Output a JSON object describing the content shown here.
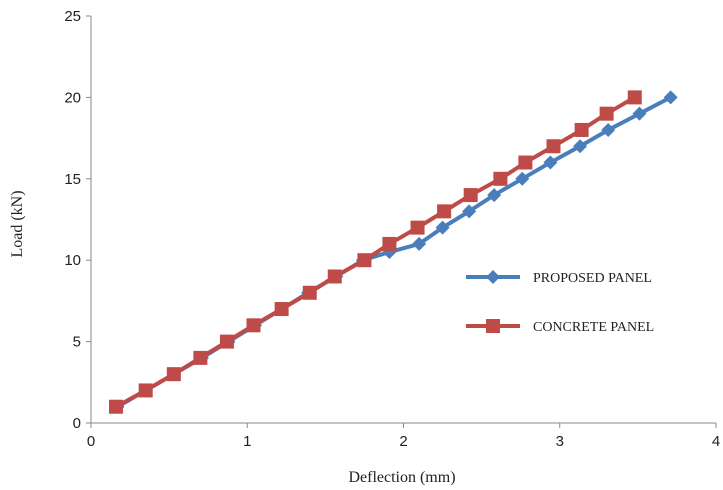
{
  "chart_data": {
    "type": "line",
    "xlabel": "Deflection (mm)",
    "ylabel": "Load (kN)",
    "xlim": [
      0,
      4
    ],
    "ylim": [
      0,
      25
    ],
    "xticks": [
      "0",
      "1",
      "2",
      "3",
      "4"
    ],
    "yticks": [
      "0",
      "5",
      "10",
      "15",
      "20",
      "25"
    ],
    "grid": false,
    "legend_position": "right",
    "series": [
      {
        "name": "PROPOSED PANEL",
        "color": "#4A7EBB",
        "marker": "diamond",
        "x": [
          0.17,
          0.35,
          0.53,
          0.71,
          0.88,
          1.05,
          1.22,
          1.39,
          1.57,
          1.74,
          1.91,
          2.1,
          2.25,
          2.42,
          2.58,
          2.76,
          2.94,
          3.13,
          3.31,
          3.51,
          3.71
        ],
        "y": [
          1,
          2,
          3,
          4,
          5,
          6,
          7,
          8,
          9,
          10,
          10.5,
          11,
          12,
          13,
          14,
          15,
          16,
          17,
          18,
          19,
          20
        ]
      },
      {
        "name": "CONCRETE PANEL",
        "color": "#BE4B48",
        "marker": "square",
        "x": [
          0.16,
          0.35,
          0.53,
          0.7,
          0.87,
          1.04,
          1.22,
          1.4,
          1.56,
          1.75,
          1.91,
          2.09,
          2.26,
          2.43,
          2.62,
          2.78,
          2.96,
          3.14,
          3.3,
          3.48
        ],
        "y": [
          1,
          2,
          3,
          4,
          5,
          6,
          7,
          8,
          9,
          10,
          11,
          12,
          13,
          14,
          15,
          16,
          17,
          18,
          19,
          20
        ]
      }
    ]
  }
}
